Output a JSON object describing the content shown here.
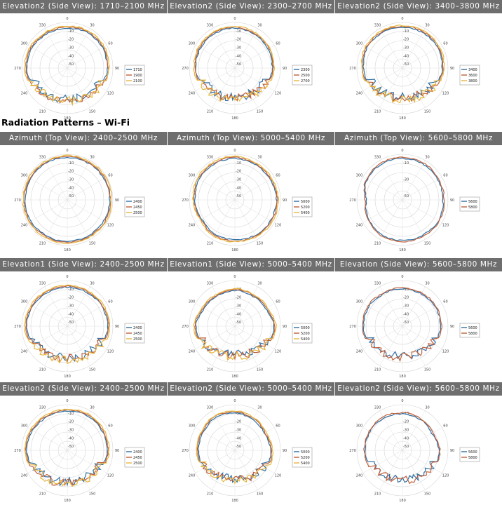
{
  "section_title": "Radiation Patterns – Wi-Fi",
  "colors": {
    "blue": "#2f6fa3",
    "orange": "#c0603a",
    "gold": "#e7b73f",
    "header_bg": "#6e6e6e"
  },
  "chart_data": [
    {
      "type": "polar-line",
      "title": "Elevation2 (Side View): 1710–2100 MHz",
      "legend": [
        "1710",
        "1900",
        "2100"
      ],
      "colors": [
        "#2f6fa3",
        "#c0603a",
        "#e7b73f"
      ],
      "r_ticks": [
        "-10",
        "-20",
        "-30",
        "-40",
        "-50"
      ],
      "angle_labels": [
        "0",
        "30",
        "60",
        "90",
        "120",
        "150",
        "180",
        "210",
        "240",
        "270",
        "300",
        "330"
      ],
      "rlim": [
        -55,
        0
      ],
      "shape_level": [
        -5,
        -4,
        -4,
        -5,
        -7,
        -10,
        -12,
        -10,
        -7,
        -4,
        -4,
        -5
      ]
    },
    {
      "type": "polar-line",
      "title": "Elevation2 (Side View): 2300–2700 MHz",
      "legend": [
        "2300",
        "2500",
        "2700"
      ],
      "colors": [
        "#2f6fa3",
        "#c0603a",
        "#e7b73f"
      ],
      "r_ticks": [
        "-10",
        "-20",
        "-30",
        "-40",
        "-50"
      ],
      "angle_labels": [
        "0",
        "30",
        "60",
        "90",
        "120",
        "150",
        "180",
        "210",
        "240",
        "270",
        "300",
        "330"
      ],
      "rlim": [
        -55,
        0
      ],
      "shape_level": [
        -5,
        -6,
        -7,
        -8,
        -10,
        -13,
        -14,
        -12,
        -9,
        -6,
        -5,
        -5
      ]
    },
    {
      "type": "polar-line",
      "title": "Elevation2 (Side View): 3400–3800 MHz",
      "legend": [
        "3400",
        "3600",
        "3800"
      ],
      "colors": [
        "#2f6fa3",
        "#c0603a",
        "#e7b73f"
      ],
      "r_ticks": [
        "-10",
        "-20",
        "-30",
        "-40",
        "-50"
      ],
      "angle_labels": [
        "0",
        "30",
        "60",
        "90",
        "120",
        "150",
        "180",
        "210",
        "240",
        "270",
        "300",
        "330"
      ],
      "rlim": [
        -55,
        0
      ],
      "shape_level": [
        -4,
        -4,
        -4,
        -5,
        -8,
        -12,
        -14,
        -12,
        -8,
        -6,
        -4,
        -4
      ]
    },
    {
      "type": "polar-line",
      "title": "Azimuth (Top View): 2400–2500 MHz",
      "legend": [
        "2400",
        "2450",
        "2500"
      ],
      "colors": [
        "#2f6fa3",
        "#c0603a",
        "#e7b73f"
      ],
      "r_ticks": [
        "-10",
        "-20",
        "-30",
        "-40",
        "-50"
      ],
      "angle_labels": [
        "0",
        "30",
        "60",
        "90",
        "120",
        "150",
        "180",
        "210",
        "240",
        "270",
        "300",
        "330"
      ],
      "rlim": [
        -55,
        0
      ],
      "shape_level": [
        -2,
        -2,
        -2,
        -2,
        -2,
        -3,
        -3,
        -3,
        -2,
        -2,
        -2,
        -2
      ]
    },
    {
      "type": "polar-line",
      "title": "Azimuth (Top View): 5000–5400 MHz",
      "legend": [
        "5000",
        "5200",
        "5400"
      ],
      "colors": [
        "#2f6fa3",
        "#c0603a",
        "#e7b73f"
      ],
      "r_ticks": [
        "-10",
        "-20",
        "-30",
        "-40",
        "-50"
      ],
      "angle_labels": [
        "0",
        "30",
        "60",
        "90",
        "120",
        "150",
        "180",
        "210",
        "240",
        "270",
        "300",
        "330"
      ],
      "rlim": [
        -55,
        0
      ],
      "shape_level": [
        -3,
        -4,
        -4,
        -3,
        -3,
        -4,
        -5,
        -5,
        -7,
        -5,
        -3,
        -3
      ]
    },
    {
      "type": "polar-line",
      "title": "Azimuth (Top View): 5600–5800 MHz",
      "legend": [
        "5600",
        "5800"
      ],
      "colors": [
        "#2f6fa3",
        "#c0603a"
      ],
      "r_ticks": [
        "-10",
        "-30",
        "-50"
      ],
      "angle_labels": [
        "0",
        "30",
        "60",
        "90",
        "120",
        "150",
        "180",
        "210",
        "240",
        "270",
        "300",
        "330"
      ],
      "rlim": [
        -55,
        0
      ],
      "shape_level": [
        -3,
        -3,
        -4,
        -4,
        -3,
        -4,
        -4,
        -4,
        -6,
        -9,
        -4,
        -3
      ]
    },
    {
      "type": "polar-line",
      "title": "Elevation1 (Side View): 2400–2500 MHz",
      "legend": [
        "2400",
        "2450",
        "2500"
      ],
      "colors": [
        "#2f6fa3",
        "#c0603a",
        "#e7b73f"
      ],
      "r_ticks": [
        "-10",
        "-20",
        "-30",
        "-40",
        "-50"
      ],
      "angle_labels": [
        "0",
        "30",
        "60",
        "90",
        "120",
        "150",
        "180",
        "210",
        "240",
        "270",
        "300",
        "330"
      ],
      "rlim": [
        -55,
        0
      ],
      "shape_level": [
        -6,
        -6,
        -5,
        -4,
        -6,
        -9,
        -11,
        -9,
        -6,
        -4,
        -5,
        -6
      ]
    },
    {
      "type": "polar-line",
      "title": "Elevation1 (Side View): 5000–5400 MHz",
      "legend": [
        "5000",
        "5200",
        "5400"
      ],
      "colors": [
        "#2f6fa3",
        "#c0603a",
        "#e7b73f"
      ],
      "r_ticks": [
        "-10",
        "-20",
        "-30",
        "-40",
        "-50"
      ],
      "angle_labels": [
        "0",
        "30",
        "60",
        "90",
        "120",
        "150",
        "180",
        "210",
        "240",
        "270",
        "300",
        "330"
      ],
      "rlim": [
        -55,
        0
      ],
      "shape_level": [
        -10,
        -11,
        -10,
        -6,
        -8,
        -13,
        -15,
        -13,
        -8,
        -6,
        -10,
        -11
      ]
    },
    {
      "type": "polar-line",
      "title": "Elevation (Side View): 5600–5800 MHz",
      "legend": [
        "5600",
        "5800"
      ],
      "colors": [
        "#2f6fa3",
        "#c0603a"
      ],
      "r_ticks": [
        "-10",
        "-20",
        "-30",
        "-40",
        "-50"
      ],
      "angle_labels": [
        "0",
        "30",
        "60",
        "90",
        "120",
        "150",
        "180",
        "210",
        "240",
        "270",
        "300",
        "330"
      ],
      "rlim": [
        -55,
        0
      ],
      "shape_level": [
        -8,
        -8,
        -7,
        -7,
        -9,
        -12,
        -13,
        -11,
        -8,
        -6,
        -6,
        -8
      ]
    },
    {
      "type": "polar-line",
      "title": "Elevation2 (Side View): 2400–2500 MHz",
      "legend": [
        "2400",
        "2450",
        "2500"
      ],
      "colors": [
        "#2f6fa3",
        "#c0603a",
        "#e7b73f"
      ],
      "r_ticks": [
        "-10",
        "-20",
        "-30",
        "-40",
        "-50"
      ],
      "angle_labels": [
        "0",
        "30",
        "60",
        "90",
        "120",
        "150",
        "180",
        "210",
        "240",
        "270",
        "300",
        "330"
      ],
      "rlim": [
        -55,
        0
      ],
      "shape_level": [
        -6,
        -5,
        -5,
        -5,
        -7,
        -10,
        -11,
        -9,
        -6,
        -4,
        -5,
        -6
      ]
    },
    {
      "type": "polar-line",
      "title": "Elevation2 (Side View): 5000–5400 MHz",
      "legend": [
        "5000",
        "5200",
        "5400"
      ],
      "colors": [
        "#2f6fa3",
        "#c0603a",
        "#e7b73f"
      ],
      "r_ticks": [
        "-10",
        "-20",
        "-30",
        "-40",
        "-50"
      ],
      "angle_labels": [
        "0",
        "30",
        "60",
        "90",
        "120",
        "150",
        "180",
        "210",
        "240",
        "270",
        "300",
        "330"
      ],
      "rlim": [
        -55,
        0
      ],
      "shape_level": [
        -8,
        -10,
        -12,
        -10,
        -9,
        -13,
        -15,
        -13,
        -10,
        -9,
        -9,
        -7
      ]
    },
    {
      "type": "polar-line",
      "title": "Elevation2 (Side View): 5600–5800 MHz",
      "legend": [
        "5600",
        "5800"
      ],
      "colors": [
        "#2f6fa3",
        "#c0603a"
      ],
      "r_ticks": [
        "-10",
        "-20",
        "-30",
        "-40",
        "-50"
      ],
      "angle_labels": [
        "0",
        "30",
        "60",
        "90",
        "120",
        "150",
        "180",
        "210",
        "240",
        "270",
        "300",
        "330"
      ],
      "rlim": [
        -55,
        0
      ],
      "shape_level": [
        -9,
        -10,
        -12,
        -9,
        -9,
        -12,
        -14,
        -12,
        -9,
        -8,
        -8,
        -8
      ]
    }
  ]
}
